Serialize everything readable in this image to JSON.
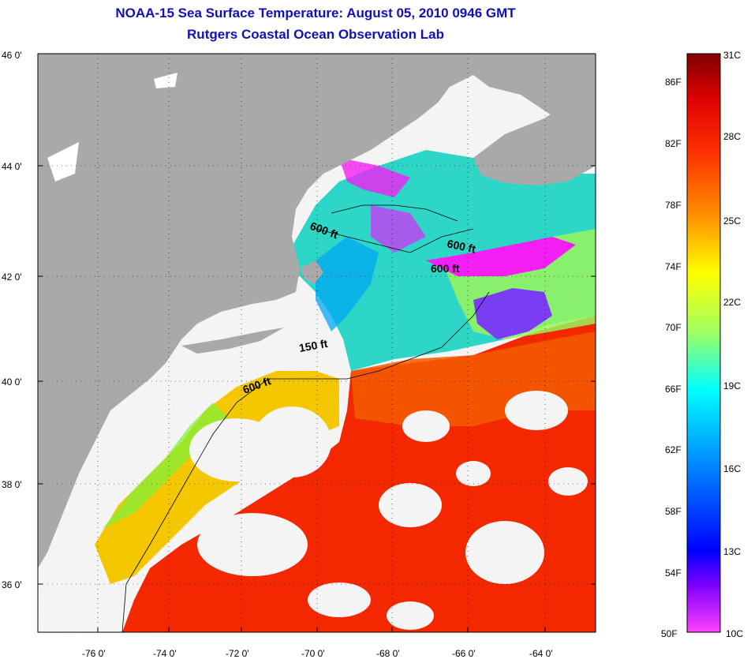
{
  "header": {
    "title": "NOAA-15 Sea Surface Temperature:  August 05, 2010 0946 GMT",
    "subtitle": "Rutgers Coastal Ocean Observation Lab"
  },
  "map": {
    "lat_labels": [
      "46 0'",
      "44 0'",
      "42 0'",
      "40 0'",
      "38 0'",
      "36 0'"
    ],
    "lon_labels": [
      "-76 0'",
      "-74 0'",
      "-72 0'",
      "-70 0'",
      "-68 0'",
      "-66 0'",
      "-64 0'"
    ],
    "contour_labels": [
      "600 ft",
      "600 ft",
      "600 ft",
      "150 ft",
      "600 ft"
    ],
    "colors": {
      "land": "#a9a9a9",
      "cloud": "#ffffff"
    }
  },
  "colorbar": {
    "fahrenheit": [
      "86F",
      "82F",
      "78F",
      "74F",
      "70F",
      "66F",
      "62F",
      "58F",
      "54F",
      "50F"
    ],
    "celsius": [
      "31C",
      "28C",
      "25C",
      "22C",
      "19C",
      "16C",
      "13C",
      "10C"
    ],
    "gradient": [
      "#800000",
      "#ff0000",
      "#ff8000",
      "#ffff00",
      "#80ff80",
      "#00ffff",
      "#0080ff",
      "#0000ff",
      "#8000ff",
      "#ff00ff"
    ]
  }
}
